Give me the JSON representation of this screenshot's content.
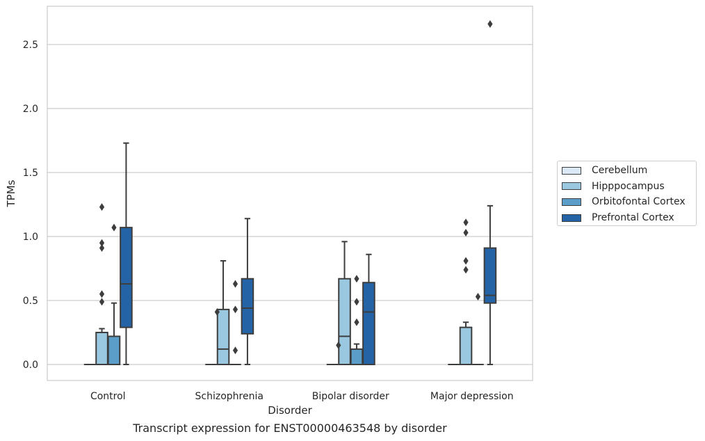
{
  "chart_data": {
    "type": "box",
    "caption": "Transcript expression for ENST00000463548 by disorder",
    "xlabel": "Disorder",
    "ylabel": "TPMs",
    "ylim": [
      -0.13,
      2.82
    ],
    "yticks": [
      0.0,
      0.5,
      1.0,
      1.5,
      2.0,
      2.5
    ],
    "ytick_labels": [
      "0.0",
      "0.5",
      "1.0",
      "1.5",
      "2.0",
      "2.5"
    ],
    "grid": "horizontal",
    "legend_placement": "right",
    "categories": [
      "Control",
      "Schizophrenia",
      "Bipolar disorder",
      "Major depression"
    ],
    "series": [
      {
        "name": "Cerebellum",
        "color": "#dbe9f6",
        "boxes": [
          {
            "q1": 0,
            "median": 0,
            "q3": 0,
            "whislo": 0,
            "whishi": 0,
            "fliers": []
          },
          {
            "q1": 0,
            "median": 0,
            "q3": 0,
            "whislo": 0,
            "whishi": 0,
            "fliers": []
          },
          {
            "q1": 0,
            "median": 0,
            "q3": 0,
            "whislo": 0,
            "whishi": 0,
            "fliers": []
          },
          {
            "q1": 0,
            "median": 0,
            "q3": 0,
            "whislo": 0,
            "whishi": 0,
            "fliers": []
          }
        ]
      },
      {
        "name": "Hipppocampus",
        "color": "#9ac8e0",
        "boxes": [
          {
            "q1": 0,
            "median": 0,
            "q3": 0.25,
            "whislo": 0,
            "whishi": 0.28,
            "fliers": [
              0.49,
              0.55,
              0.91,
              0.95,
              1.23
            ]
          },
          {
            "q1": 0,
            "median": 0.12,
            "q3": 0.43,
            "whislo": 0,
            "whishi": 0.81,
            "fliers": []
          },
          {
            "q1": 0,
            "median": 0.22,
            "q3": 0.67,
            "whislo": 0,
            "whishi": 0.96,
            "fliers": []
          },
          {
            "q1": 0,
            "median": 0,
            "q3": 0.29,
            "whislo": 0,
            "whishi": 0.33,
            "fliers": [
              0.74,
              0.81,
              1.03,
              1.11
            ]
          }
        ]
      },
      {
        "name": "Orbitofontal Cortex",
        "color": "#5a9ec9",
        "boxes": [
          {
            "q1": 0,
            "median": 0,
            "q3": 0.22,
            "whislo": 0,
            "whishi": 0.48,
            "fliers": [
              1.07
            ]
          },
          {
            "q1": 0,
            "median": 0,
            "q3": 0,
            "whislo": 0,
            "whishi": 0,
            "fliers": [
              0.11,
              0.43,
              0.63
            ]
          },
          {
            "q1": 0,
            "median": 0,
            "q3": 0.12,
            "whislo": 0,
            "whishi": 0.16,
            "fliers": [
              0.33,
              0.49,
              0.67
            ]
          },
          {
            "q1": 0,
            "median": 0,
            "q3": 0,
            "whislo": 0,
            "whishi": 0,
            "fliers": [
              0.53
            ]
          }
        ]
      },
      {
        "name": "Prefrontal Cortex",
        "color": "#2464a6",
        "boxes": [
          {
            "q1": 0.29,
            "median": 0.63,
            "q3": 1.07,
            "whislo": 0,
            "whishi": 1.73,
            "fliers": []
          },
          {
            "q1": 0.24,
            "median": 0.44,
            "q3": 0.67,
            "whislo": 0,
            "whishi": 1.14,
            "fliers": []
          },
          {
            "q1": 0,
            "median": 0.41,
            "q3": 0.64,
            "whislo": 0,
            "whishi": 0.86,
            "fliers": []
          },
          {
            "q1": 0.48,
            "median": 0.54,
            "q3": 0.91,
            "whislo": 0,
            "whishi": 1.24,
            "fliers": [
              2.66
            ]
          }
        ]
      }
    ],
    "extra_fliers": [
      {
        "category": 1,
        "series": 0,
        "side": "right",
        "value": 0.41
      },
      {
        "category": 2,
        "series": 0,
        "side": "right",
        "value": 0.15
      }
    ]
  }
}
